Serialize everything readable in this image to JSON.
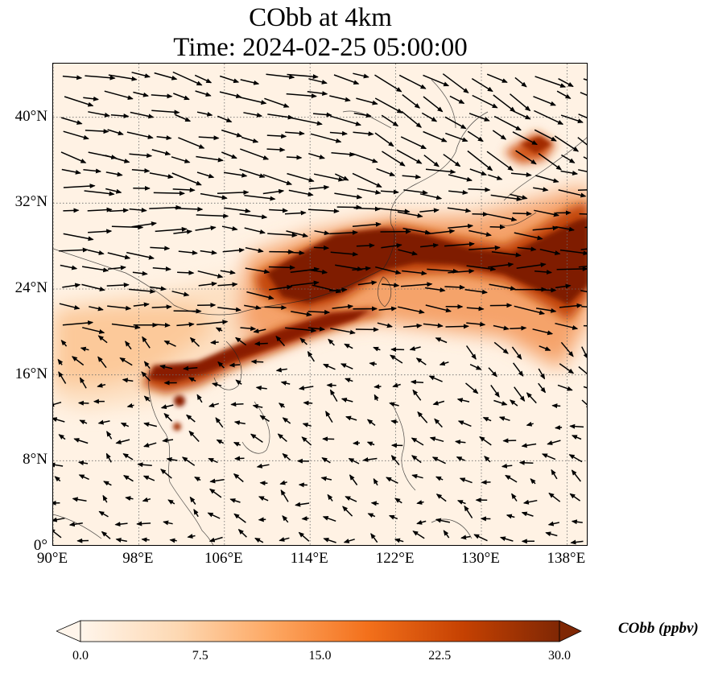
{
  "title": {
    "line1": "CObb at 4km",
    "line2": "Time: 2024-02-25 05:00:00"
  },
  "map": {
    "lat_range": [
      0,
      45
    ],
    "lon_range": [
      90,
      140
    ],
    "lat_ticks": [
      {
        "value": 40,
        "label": "40°N"
      },
      {
        "value": 32,
        "label": "32°N"
      },
      {
        "value": 24,
        "label": "24°N"
      },
      {
        "value": 16,
        "label": "16°N"
      },
      {
        "value": 8,
        "label": "8°N"
      },
      {
        "value": 0,
        "label": "0°"
      }
    ],
    "lon_ticks": [
      {
        "value": 90,
        "label": "90°E"
      },
      {
        "value": 98,
        "label": "98°E"
      },
      {
        "value": 106,
        "label": "106°E"
      },
      {
        "value": 114,
        "label": "114°E"
      },
      {
        "value": 122,
        "label": "122°E"
      },
      {
        "value": 130,
        "label": "130°E"
      },
      {
        "value": 138,
        "label": "138°E"
      }
    ],
    "gridlines": true,
    "field": "CObb concentration",
    "wind_vectors": true
  },
  "colorbar": {
    "label": "CObb (ppbv)",
    "ticks": [
      "0.0",
      "7.5",
      "15.0",
      "22.5",
      "30.0"
    ],
    "min": 0,
    "max": 30,
    "extend": "both",
    "colormap": [
      "#fff5eb",
      "#fdd9b4",
      "#fda762",
      "#f3701b",
      "#c54102",
      "#7f2704"
    ]
  }
}
